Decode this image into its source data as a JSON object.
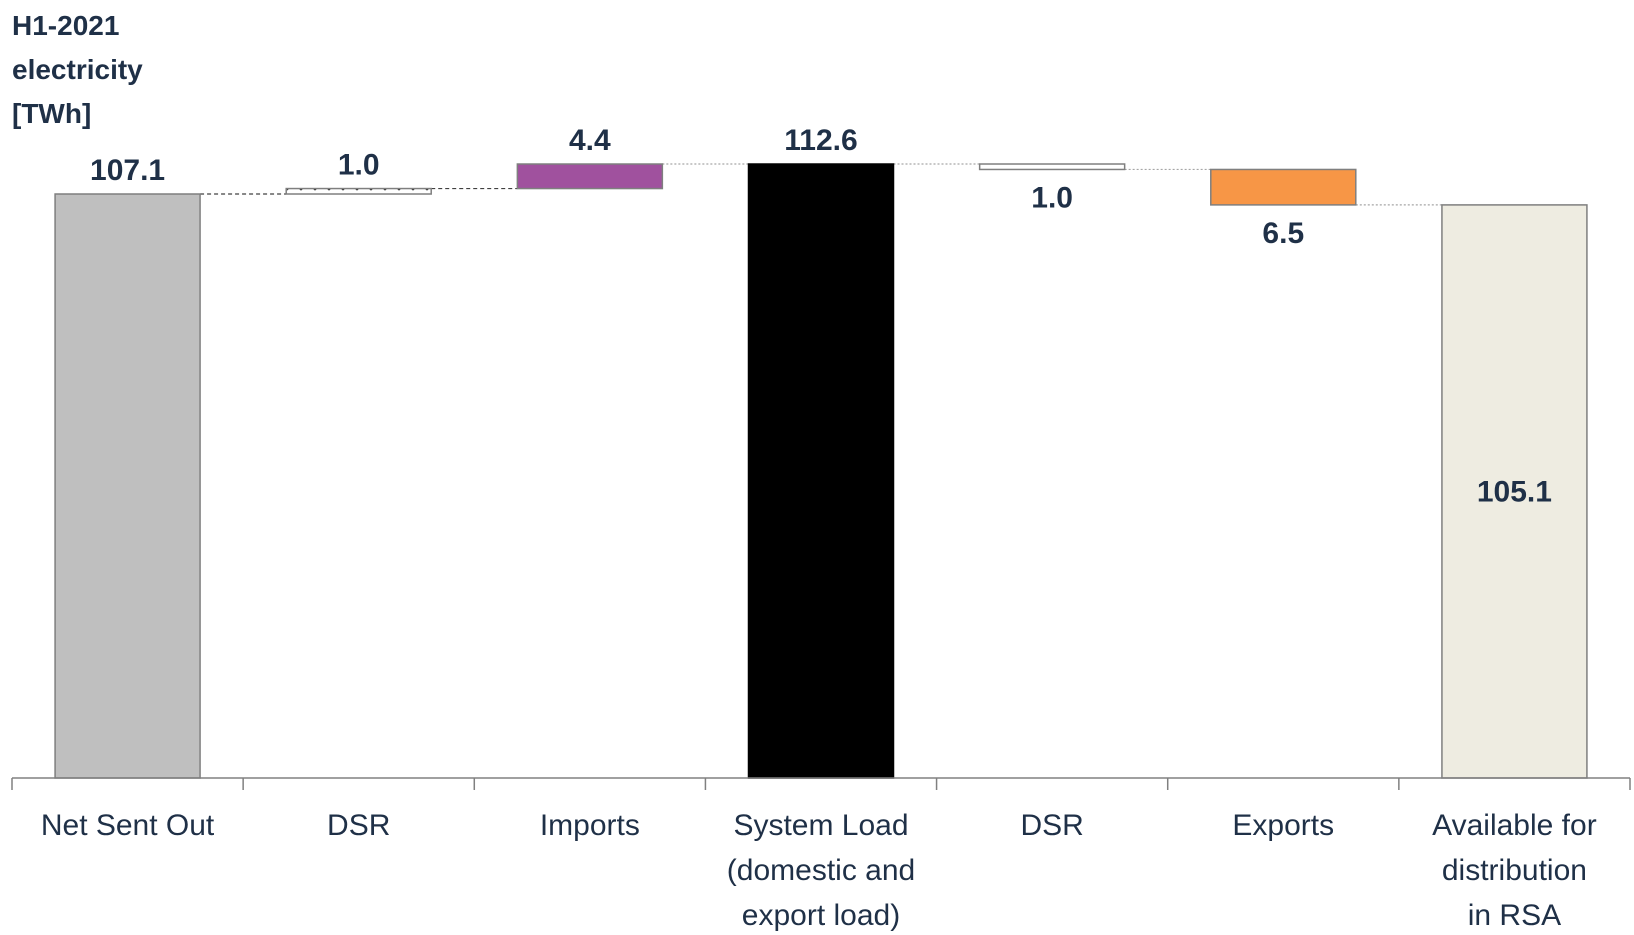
{
  "chart_data": {
    "type": "bar",
    "subtype": "waterfall",
    "title": "",
    "ylabel": "H1-2021\nelectricity\n[TWh]",
    "xlabel": "",
    "ylim": [
      0,
      114
    ],
    "grid": false,
    "legend": "none",
    "categories": [
      "Net Sent Out",
      "DSR",
      "Imports",
      "System Load\n(domestic and\nexport load)",
      "DSR",
      "Exports",
      "Available for\ndistribution\nin RSA"
    ],
    "bars": [
      {
        "kind": "total",
        "start": 0,
        "end": 107.1,
        "label": "107.1",
        "color": "#bfbfbf",
        "label_pos": "above"
      },
      {
        "kind": "increase",
        "start": 107.1,
        "end": 108.1,
        "label": "1.0",
        "color": "#ffffff",
        "pattern": "dotted",
        "label_pos": "above"
      },
      {
        "kind": "increase",
        "start": 108.1,
        "end": 112.6,
        "label": "4.4",
        "color": "#a0519e",
        "label_pos": "above"
      },
      {
        "kind": "total",
        "start": 0,
        "end": 112.6,
        "label": "112.6",
        "color": "#000000",
        "label_pos": "above"
      },
      {
        "kind": "decrease",
        "start": 112.6,
        "end": 111.6,
        "label": "1.0",
        "color": "#ffffff",
        "pattern": "dotted",
        "label_pos": "below"
      },
      {
        "kind": "decrease",
        "start": 111.6,
        "end": 105.1,
        "label": "6.5",
        "color": "#f79646",
        "label_pos": "below"
      },
      {
        "kind": "total",
        "start": 0,
        "end": 105.1,
        "label": "105.1",
        "color": "#eeece1",
        "label_pos": "inside"
      }
    ]
  }
}
